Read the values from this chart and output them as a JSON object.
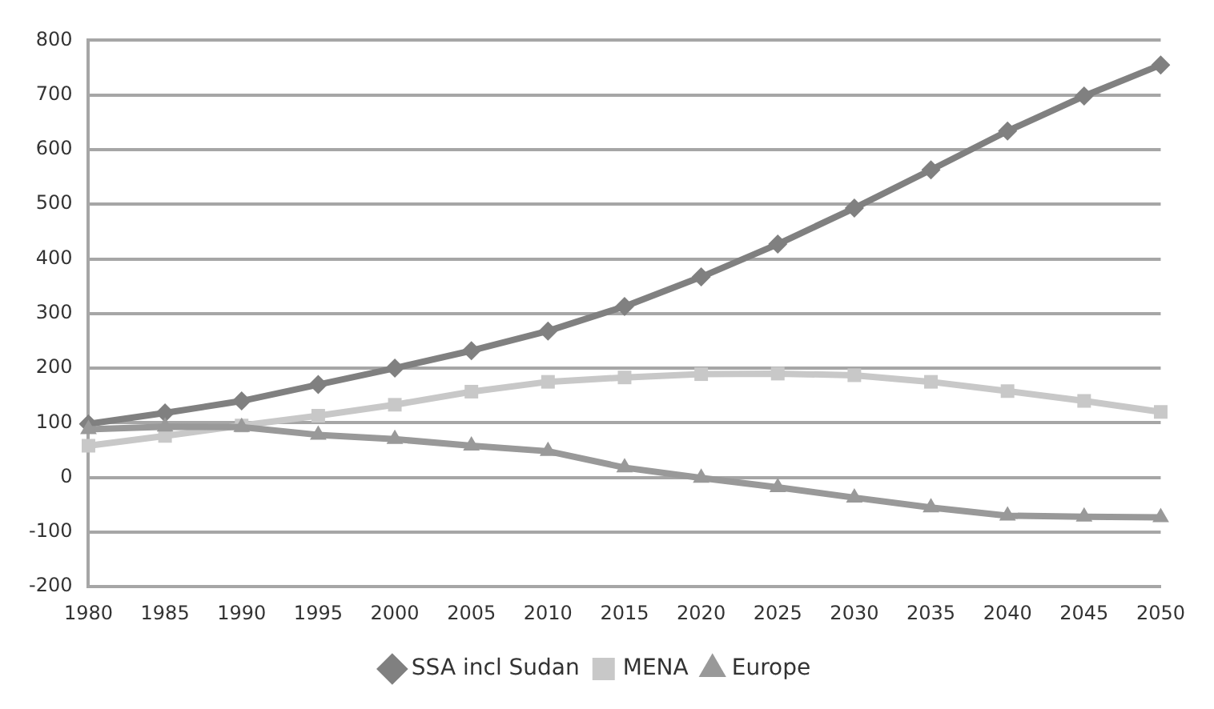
{
  "chart_data": {
    "type": "line",
    "categories": [
      "1980",
      "1985",
      "1990",
      "1995",
      "2000",
      "2005",
      "2010",
      "2015",
      "2020",
      "2025",
      "2030",
      "2035",
      "2040",
      "2045",
      "2050"
    ],
    "series": [
      {
        "name": "SSA incl Sudan",
        "color": "#808080",
        "marker": "diamond",
        "values": [
          98,
          118,
          140,
          170,
          200,
          232,
          268,
          313,
          367,
          427,
          493,
          563,
          634,
          698,
          755
        ]
      },
      {
        "name": "MENA",
        "color": "#c8c8c8",
        "marker": "square",
        "values": [
          58,
          76,
          95,
          113,
          133,
          157,
          175,
          183,
          189,
          190,
          187,
          175,
          158,
          140,
          120
        ]
      },
      {
        "name": "Europe",
        "color": "#999999",
        "marker": "triangle",
        "values": [
          88,
          93,
          92,
          78,
          70,
          58,
          48,
          18,
          -1,
          -18,
          -37,
          -55,
          -70,
          -72,
          -73
        ]
      }
    ],
    "ylim": [
      -200,
      800
    ],
    "yticks": [
      -200,
      -100,
      0,
      100,
      200,
      300,
      400,
      500,
      600,
      700,
      800
    ],
    "grid": "y",
    "legend": "bottom",
    "line_style": "solid"
  }
}
